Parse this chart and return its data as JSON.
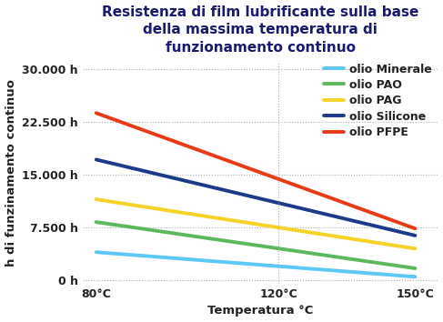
{
  "title": "Resistenza di film lubrificante sulla base\ndella massima temperatura di\nfunzionamento continuo",
  "xlabel": "Temperatura °C",
  "ylabel": "h di funzinamento continuo",
  "x_values": [
    80,
    120,
    150
  ],
  "series": [
    {
      "label": "olio Minerale",
      "color": "#5BC8F5",
      "values": [
        4000,
        2000,
        500
      ]
    },
    {
      "label": "olio PAO",
      "color": "#5CB85C",
      "values": [
        8500,
        4000,
        2000
      ]
    },
    {
      "label": "olio PAG",
      "color": "#F5D327",
      "values": [
        11500,
        7500,
        4500
      ]
    },
    {
      "label": "olio Silicone",
      "color": "#1C3A8A",
      "values": [
        16500,
        12500,
        5500
      ]
    },
    {
      "label": "olio PFPE",
      "color": "#E83A16",
      "values": [
        23500,
        15000,
        7000
      ]
    }
  ],
  "yticks": [
    0,
    7500,
    15000,
    22500,
    30000
  ],
  "ytick_labels": [
    "0 h",
    "7.500 h",
    "15.000 h",
    "22.500 h",
    "30.000 h"
  ],
  "xticks": [
    80,
    120,
    150
  ],
  "xtick_labels": [
    "80°C",
    "120°C",
    "150°C"
  ],
  "ylim": [
    -500,
    31000
  ],
  "xlim": [
    77,
    155
  ],
  "background_color": "#ffffff",
  "grid_color": "#999999",
  "title_color": "#1a1a6e",
  "title_fontsize": 11,
  "axis_label_fontsize": 9.5,
  "tick_fontsize": 9,
  "legend_fontsize": 9,
  "line_width": 2.8
}
